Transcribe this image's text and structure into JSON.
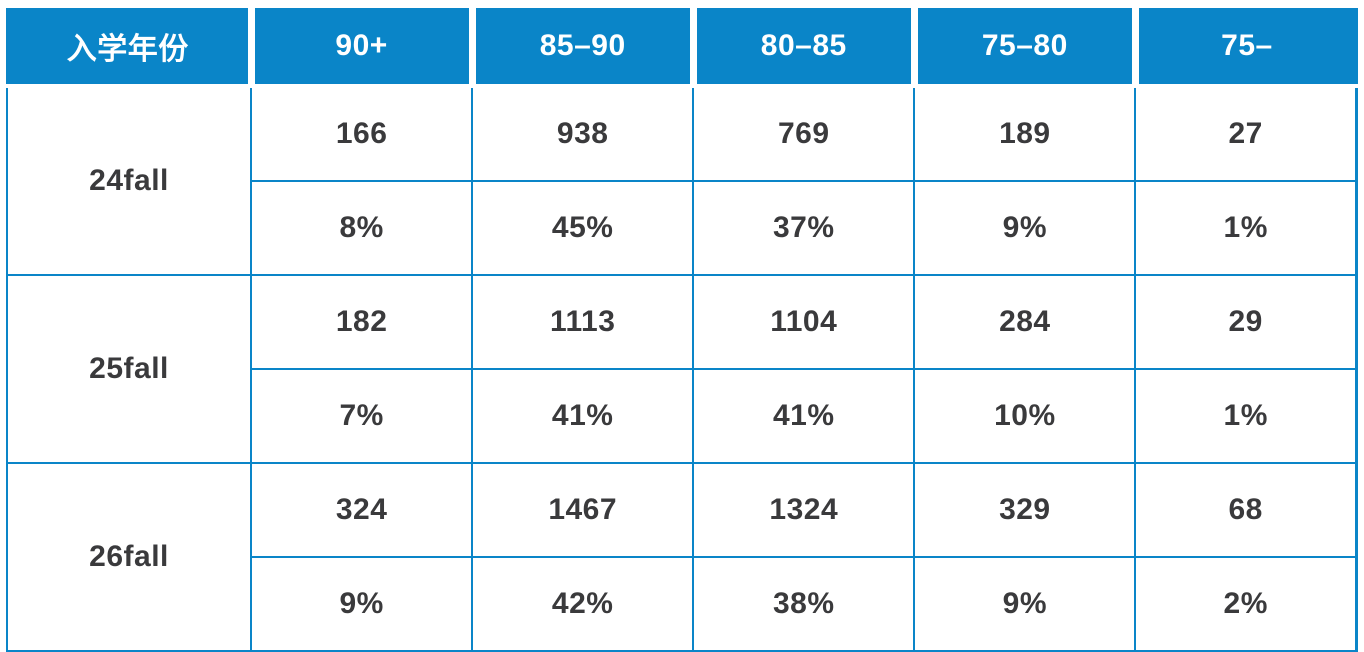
{
  "table": {
    "header": {
      "year_label": "入学年份",
      "cols": [
        "90+",
        "85–90",
        "80–85",
        "75–80",
        "75–"
      ]
    },
    "groups": [
      {
        "year": "24fall",
        "counts": [
          "166",
          "938",
          "769",
          "189",
          "27"
        ],
        "percents": [
          "8%",
          "45%",
          "37%",
          "9%",
          "1%"
        ]
      },
      {
        "year": "25fall",
        "counts": [
          "182",
          "1113",
          "1104",
          "284",
          "29"
        ],
        "percents": [
          "7%",
          "41%",
          "41%",
          "10%",
          "1%"
        ]
      },
      {
        "year": "26fall",
        "counts": [
          "324",
          "1467",
          "1324",
          "329",
          "68"
        ],
        "percents": [
          "9%",
          "42%",
          "38%",
          "9%",
          "2%"
        ]
      }
    ]
  },
  "colors": {
    "header_bg": "#0a85c8",
    "grid_line": "#0a85c8",
    "header_text": "#ffffff",
    "body_text": "#3a3a3c",
    "background": "#ffffff"
  },
  "chart_data": {
    "type": "table",
    "title": "",
    "columns": [
      "入学年份",
      "90+",
      "85–90",
      "80–85",
      "75–80",
      "75–"
    ],
    "rows": [
      [
        "24fall",
        "166",
        "938",
        "769",
        "189",
        "27"
      ],
      [
        "24fall",
        "8%",
        "45%",
        "37%",
        "9%",
        "1%"
      ],
      [
        "25fall",
        "182",
        "1113",
        "1104",
        "284",
        "29"
      ],
      [
        "25fall",
        "7%",
        "41%",
        "41%",
        "10%",
        "1%"
      ],
      [
        "26fall",
        "324",
        "1467",
        "1324",
        "329",
        "68"
      ],
      [
        "26fall",
        "9%",
        "42%",
        "38%",
        "9%",
        "2%"
      ]
    ]
  }
}
